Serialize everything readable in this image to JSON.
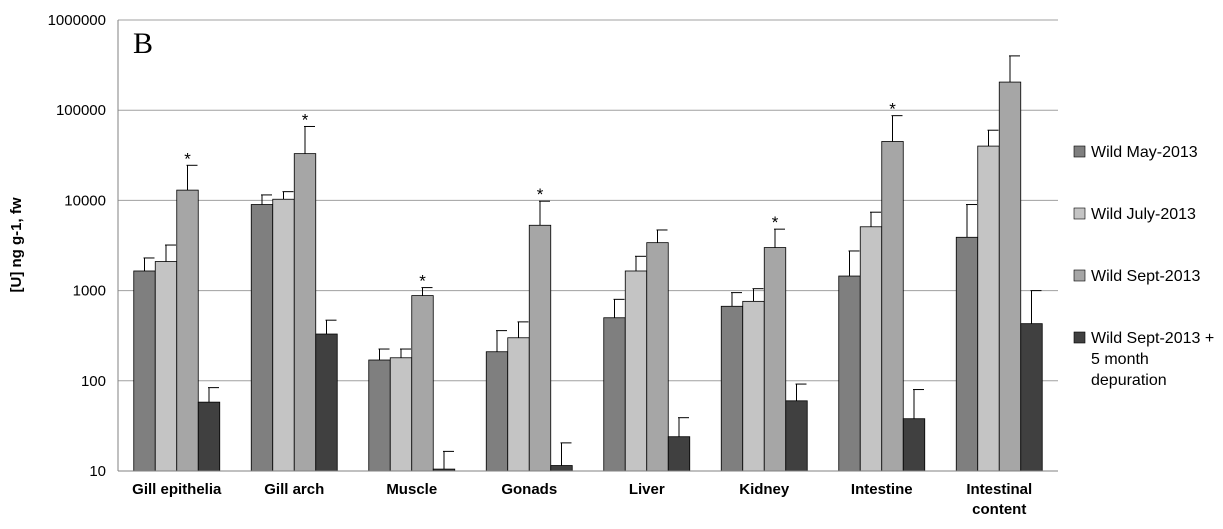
{
  "chart_data": {
    "type": "bar",
    "panel_label": "B",
    "ylabel": "[U] ng g-1, fw",
    "yscale": "log",
    "ylim": [
      10,
      1000000
    ],
    "yticks": [
      10,
      100,
      1000,
      10000,
      100000,
      1000000
    ],
    "ytick_labels": [
      "10",
      "100",
      "1000",
      "10000",
      "100000",
      "1000000"
    ],
    "grid": true,
    "legend_position": "right",
    "categories": [
      [
        "Gill  epithelia"
      ],
      [
        "Gill arch"
      ],
      [
        "Muscle"
      ],
      [
        "Gonads"
      ],
      [
        "Liver"
      ],
      [
        "Kidney"
      ],
      [
        "Intestine"
      ],
      [
        "Intestinal",
        "content"
      ]
    ],
    "series": [
      {
        "name": "Wild May-2013",
        "color": "#7f7f7f",
        "values": [
          1650,
          9000,
          170,
          210,
          500,
          670,
          1450,
          3900
        ],
        "errors": [
          2300,
          11500,
          225,
          360,
          800,
          950,
          2750,
          9000
        ]
      },
      {
        "name": "Wild July-2013",
        "color": "#c4c4c4",
        "values": [
          2100,
          10300,
          180,
          300,
          1650,
          760,
          5100,
          40000
        ],
        "errors": [
          3200,
          12500,
          225,
          450,
          2400,
          1050,
          7400,
          60000
        ]
      },
      {
        "name": "Wild Sept-2013",
        "color": "#a6a6a6",
        "values": [
          13000,
          33000,
          880,
          5300,
          3400,
          3000,
          45000,
          205000
        ],
        "errors": [
          24500,
          66000,
          1080,
          9800,
          4700,
          4800,
          87000,
          400000
        ]
      },
      {
        "name_lines": [
          "Wild Sept-2013 +",
          "5 month",
          "depuration"
        ],
        "color": "#404040",
        "values": [
          58,
          330,
          10.5,
          11.5,
          24,
          60,
          38,
          430
        ],
        "errors": [
          84,
          470,
          16.5,
          20.5,
          39,
          92,
          80,
          1000
        ]
      }
    ],
    "significance_marker": "*",
    "significant": [
      [
        false,
        false,
        true,
        false
      ],
      [
        false,
        false,
        true,
        false
      ],
      [
        false,
        false,
        true,
        false
      ],
      [
        false,
        false,
        true,
        false
      ],
      [
        false,
        false,
        false,
        false
      ],
      [
        false,
        false,
        true,
        false
      ],
      [
        false,
        false,
        true,
        false
      ],
      [
        false,
        false,
        false,
        false
      ]
    ]
  }
}
